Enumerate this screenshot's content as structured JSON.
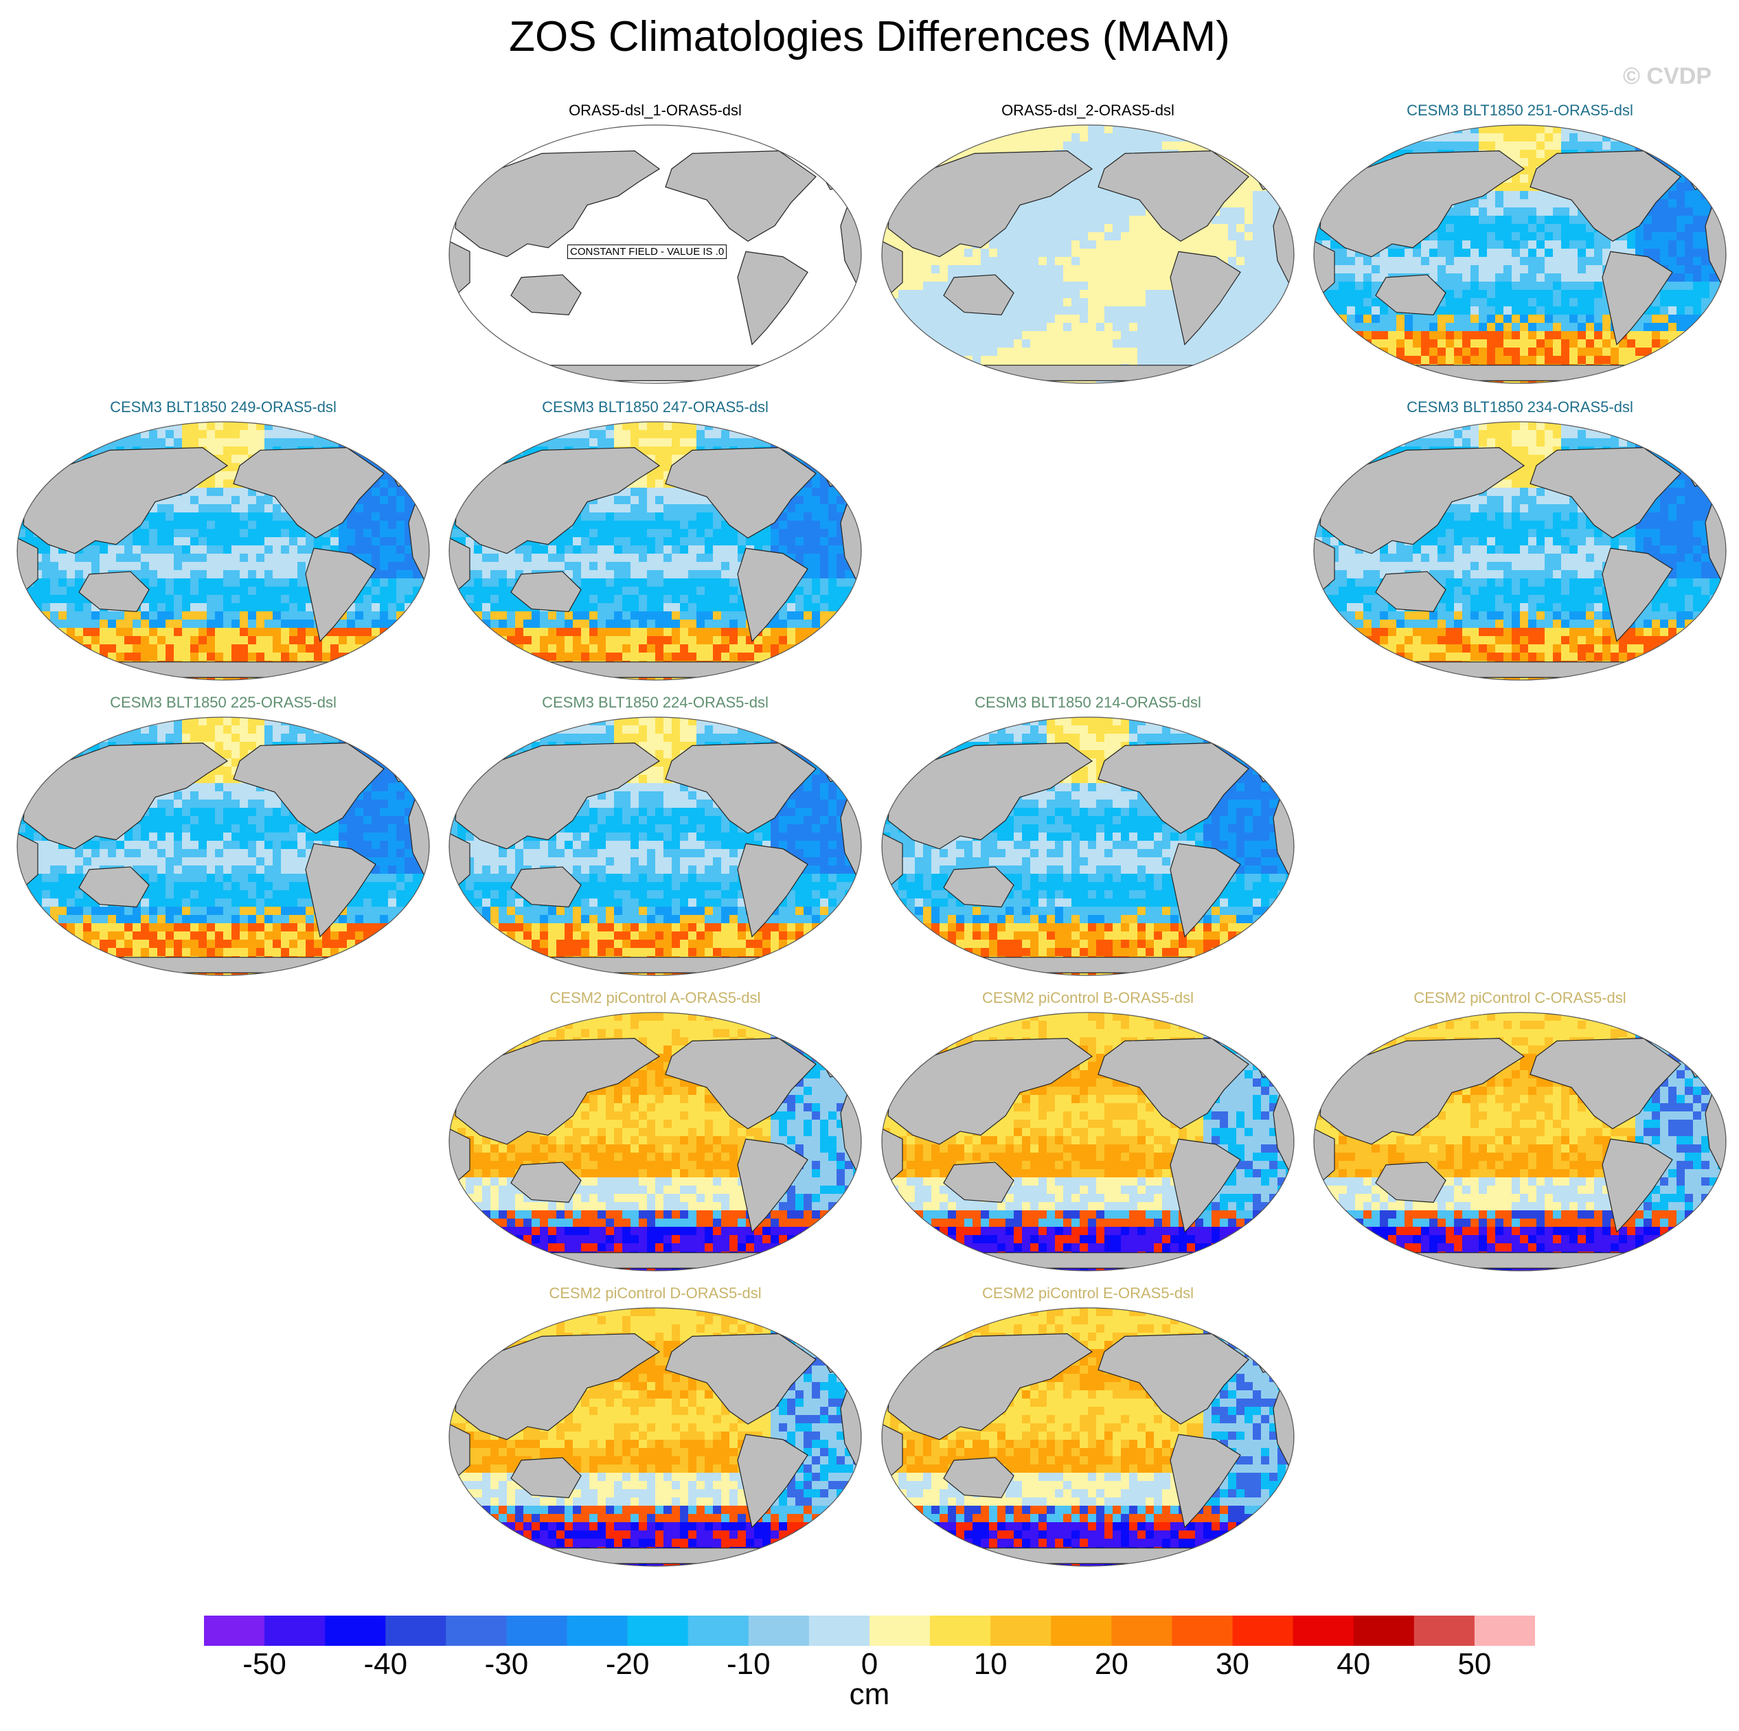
{
  "page": {
    "title": "ZOS Climatologies Differences (MAM)",
    "copyright": "© CVDP"
  },
  "panels": [
    {
      "title": "ORAS5-dsl_1-ORAS5-dsl",
      "title_color": "#000000",
      "row": 0,
      "col": 1,
      "pattern": "constant",
      "annotation": "CONSTANT FIELD - VALUE IS .0"
    },
    {
      "title": "ORAS5-dsl_2-ORAS5-dsl",
      "title_color": "#000000",
      "row": 0,
      "col": 2,
      "pattern": "near-zero"
    },
    {
      "title": "CESM3 BLT1850 251-ORAS5-dsl",
      "title_color": "#1f6f8b",
      "row": 0,
      "col": 3,
      "pattern": "blue"
    },
    {
      "title": "CESM3 BLT1850 249-ORAS5-dsl",
      "title_color": "#1f6f8b",
      "row": 1,
      "col": 0,
      "pattern": "blue"
    },
    {
      "title": "CESM3 BLT1850 247-ORAS5-dsl",
      "title_color": "#1f6f8b",
      "row": 1,
      "col": 1,
      "pattern": "blue"
    },
    {
      "title": "CESM3 BLT1850 234-ORAS5-dsl",
      "title_color": "#1f6f8b",
      "row": 1,
      "col": 3,
      "pattern": "blue"
    },
    {
      "title": "CESM3 BLT1850 225-ORAS5-dsl",
      "title_color": "#5f8f6f",
      "row": 2,
      "col": 0,
      "pattern": "blue"
    },
    {
      "title": "CESM3 BLT1850 224-ORAS5-dsl",
      "title_color": "#5f8f6f",
      "row": 2,
      "col": 1,
      "pattern": "blue"
    },
    {
      "title": "CESM3 BLT1850 214-ORAS5-dsl",
      "title_color": "#5f8f6f",
      "row": 2,
      "col": 2,
      "pattern": "blue"
    },
    {
      "title": "CESM2 piControl A-ORAS5-dsl",
      "title_color": "#c9b46a",
      "row": 3,
      "col": 1,
      "pattern": "warm"
    },
    {
      "title": "CESM2 piControl B-ORAS5-dsl",
      "title_color": "#c9b46a",
      "row": 3,
      "col": 2,
      "pattern": "warm"
    },
    {
      "title": "CESM2 piControl C-ORAS5-dsl",
      "title_color": "#c9b46a",
      "row": 3,
      "col": 3,
      "pattern": "warm"
    },
    {
      "title": "CESM2 piControl D-ORAS5-dsl",
      "title_color": "#c9b46a",
      "row": 4,
      "col": 1,
      "pattern": "warm"
    },
    {
      "title": "CESM2 piControl E-ORAS5-dsl",
      "title_color": "#c9b46a",
      "row": 4,
      "col": 2,
      "pattern": "warm"
    }
  ],
  "colorbar": {
    "units": "cm",
    "colors": [
      "#7b1ff2",
      "#3b13f5",
      "#0a0afa",
      "#2a45de",
      "#3a6be6",
      "#2281f0",
      "#139cf7",
      "#0cbcf6",
      "#4dc2f3",
      "#92cdee",
      "#bde0f3",
      "#fdf5a8",
      "#fde24f",
      "#fdc32a",
      "#fda40b",
      "#fd8208",
      "#fe5a05",
      "#fd2a01",
      "#e70402",
      "#c10100",
      "#d84a48",
      "#fcb3b5"
    ],
    "tick_labels": [
      "-50",
      "-40",
      "-30",
      "-20",
      "-10",
      "0",
      "10",
      "20",
      "30",
      "40",
      "50"
    ]
  },
  "legend_colors": {
    "land": "#bdbdbd",
    "ocean_constant": "#ffffff"
  }
}
